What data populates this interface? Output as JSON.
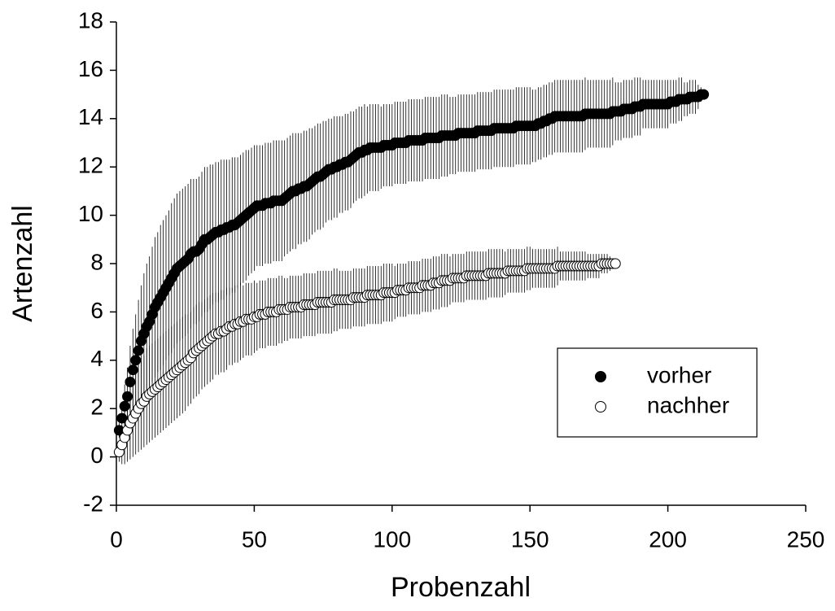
{
  "chart_data": {
    "type": "scatter",
    "xlabel": "Probenzahl",
    "ylabel": "Artenzahl",
    "xlim": [
      0,
      250
    ],
    "xticks": [
      0,
      50,
      100,
      150,
      200,
      250
    ],
    "ylim": [
      -2,
      18
    ],
    "yticks": [
      -2,
      0,
      2,
      4,
      6,
      8,
      10,
      12,
      14,
      16,
      18
    ],
    "legend": "lower right",
    "series": [
      {
        "name": "vorher",
        "color": "#000000",
        "x": [
          1,
          2,
          3,
          4,
          5,
          6,
          7,
          8,
          9,
          10,
          11,
          12,
          13,
          14,
          15,
          16,
          17,
          18,
          19,
          20,
          21,
          22,
          23,
          24,
          25,
          26,
          27,
          28,
          29,
          30,
          31,
          32,
          33,
          34,
          35,
          36,
          37,
          38,
          39,
          40,
          41,
          42,
          43,
          44,
          45,
          46,
          47,
          48,
          49,
          50,
          51,
          52,
          53,
          54,
          55,
          56,
          57,
          58,
          59,
          60,
          61,
          62,
          63,
          64,
          65,
          66,
          67,
          68,
          69,
          70,
          71,
          72,
          73,
          74,
          75,
          76,
          77,
          78,
          79,
          80,
          81,
          82,
          83,
          84,
          85,
          86,
          87,
          88,
          89,
          90,
          91,
          92,
          93,
          94,
          95,
          96,
          97,
          98,
          99,
          100,
          101,
          102,
          103,
          104,
          105,
          106,
          107,
          108,
          109,
          110,
          111,
          112,
          113,
          114,
          115,
          116,
          117,
          118,
          119,
          120,
          121,
          122,
          123,
          124,
          125,
          126,
          127,
          128,
          129,
          130,
          131,
          132,
          133,
          134,
          135,
          136,
          137,
          138,
          139,
          140,
          141,
          142,
          143,
          144,
          145,
          146,
          147,
          148,
          149,
          150,
          151,
          152,
          153,
          154,
          155,
          156,
          157,
          158,
          159,
          160,
          161,
          162,
          163,
          164,
          165,
          166,
          167,
          168,
          169,
          170,
          171,
          172,
          173,
          174,
          175,
          176,
          177,
          178,
          179,
          180,
          181,
          182,
          183,
          184,
          185,
          186,
          187,
          188,
          189,
          190,
          191,
          192,
          193,
          194,
          195,
          196,
          197,
          198,
          199,
          200,
          201,
          202,
          203,
          204,
          205,
          206,
          207,
          208,
          209,
          210,
          211,
          212,
          213
        ],
        "values": [
          1.1,
          1.6,
          2.1,
          2.5,
          3.1,
          3.6,
          4.0,
          4.4,
          4.8,
          5.1,
          5.4,
          5.6,
          5.9,
          6.2,
          6.4,
          6.6,
          6.8,
          7.0,
          7.2,
          7.4,
          7.6,
          7.8,
          7.9,
          8.0,
          8.1,
          8.2,
          8.4,
          8.5,
          8.5,
          8.6,
          8.8,
          9.0,
          9.0,
          9.1,
          9.2,
          9.3,
          9.3,
          9.4,
          9.4,
          9.5,
          9.5,
          9.6,
          9.6,
          9.7,
          9.8,
          9.9,
          10.0,
          10.1,
          10.2,
          10.3,
          10.4,
          10.4,
          10.4,
          10.5,
          10.5,
          10.5,
          10.6,
          10.6,
          10.6,
          10.6,
          10.7,
          10.8,
          10.9,
          11.0,
          11.0,
          11.1,
          11.1,
          11.2,
          11.2,
          11.3,
          11.4,
          11.5,
          11.6,
          11.6,
          11.7,
          11.8,
          11.9,
          11.9,
          12.0,
          12.0,
          12.1,
          12.1,
          12.2,
          12.2,
          12.3,
          12.4,
          12.5,
          12.6,
          12.6,
          12.7,
          12.7,
          12.8,
          12.8,
          12.8,
          12.8,
          12.8,
          12.9,
          12.9,
          12.9,
          12.9,
          13.0,
          13.0,
          13.0,
          13.0,
          13.0,
          13.1,
          13.1,
          13.1,
          13.1,
          13.1,
          13.1,
          13.2,
          13.2,
          13.2,
          13.2,
          13.2,
          13.2,
          13.3,
          13.3,
          13.3,
          13.3,
          13.3,
          13.3,
          13.4,
          13.4,
          13.4,
          13.4,
          13.4,
          13.4,
          13.4,
          13.5,
          13.5,
          13.5,
          13.5,
          13.5,
          13.5,
          13.6,
          13.6,
          13.6,
          13.6,
          13.6,
          13.6,
          13.6,
          13.6,
          13.7,
          13.7,
          13.7,
          13.7,
          13.7,
          13.7,
          13.7,
          13.7,
          13.8,
          13.8,
          13.9,
          13.9,
          14.0,
          14.0,
          14.1,
          14.1,
          14.1,
          14.1,
          14.1,
          14.1,
          14.1,
          14.1,
          14.1,
          14.1,
          14.1,
          14.2,
          14.2,
          14.2,
          14.2,
          14.2,
          14.2,
          14.2,
          14.2,
          14.2,
          14.2,
          14.3,
          14.3,
          14.3,
          14.3,
          14.4,
          14.4,
          14.4,
          14.4,
          14.5,
          14.5,
          14.5,
          14.6,
          14.6,
          14.6,
          14.6,
          14.6,
          14.6,
          14.6,
          14.6,
          14.6,
          14.6,
          14.7,
          14.7,
          14.7,
          14.8,
          14.8,
          14.8,
          14.8,
          14.9,
          14.9,
          14.9,
          14.9,
          15.0,
          15.0
        ],
        "errors": [
          0.3,
          0.6,
          0.9,
          1.2,
          1.5,
          1.7,
          1.9,
          2.1,
          2.3,
          2.5,
          2.6,
          2.7,
          2.8,
          2.9,
          2.9,
          3.0,
          3.0,
          3.0,
          3.0,
          3.1,
          3.1,
          3.1,
          3.1,
          3.1,
          3.1,
          3.1,
          3.1,
          3.0,
          3.0,
          3.0,
          3.0,
          3.0,
          3.0,
          3.0,
          2.9,
          2.9,
          2.9,
          2.9,
          2.9,
          2.8,
          2.8,
          2.8,
          2.8,
          2.7,
          2.7,
          2.7,
          2.7,
          2.6,
          2.6,
          2.6,
          2.5,
          2.5,
          2.5,
          2.5,
          2.5,
          2.5,
          2.5,
          2.5,
          2.5,
          2.5,
          2.4,
          2.4,
          2.4,
          2.4,
          2.4,
          2.3,
          2.3,
          2.3,
          2.3,
          2.3,
          2.2,
          2.2,
          2.2,
          2.2,
          2.2,
          2.1,
          2.1,
          2.1,
          2.1,
          2.1,
          2.0,
          2.0,
          2.0,
          2.0,
          2.0,
          1.9,
          1.9,
          1.9,
          1.9,
          1.9,
          1.8,
          1.8,
          1.8,
          1.8,
          1.8,
          1.7,
          1.7,
          1.7,
          1.7,
          1.7,
          1.7,
          1.7,
          1.7,
          1.7,
          1.7,
          1.7,
          1.7,
          1.7,
          1.7,
          1.7,
          1.7,
          1.7,
          1.7,
          1.7,
          1.7,
          1.7,
          1.7,
          1.7,
          1.7,
          1.7,
          1.6,
          1.6,
          1.6,
          1.6,
          1.6,
          1.6,
          1.6,
          1.6,
          1.6,
          1.6,
          1.6,
          1.6,
          1.6,
          1.6,
          1.6,
          1.6,
          1.6,
          1.6,
          1.6,
          1.6,
          1.6,
          1.6,
          1.6,
          1.6,
          1.6,
          1.6,
          1.6,
          1.6,
          1.6,
          1.6,
          1.5,
          1.5,
          1.5,
          1.5,
          1.5,
          1.5,
          1.5,
          1.5,
          1.5,
          1.5,
          1.5,
          1.5,
          1.5,
          1.5,
          1.5,
          1.5,
          1.5,
          1.5,
          1.5,
          1.5,
          1.4,
          1.4,
          1.4,
          1.4,
          1.4,
          1.4,
          1.4,
          1.4,
          1.4,
          1.4,
          1.2,
          1.2,
          1.2,
          1.2,
          1.2,
          1.2,
          1.2,
          1.2,
          1.2,
          1.2,
          1.0,
          1.0,
          1.0,
          1.0,
          1.0,
          1.0,
          1.0,
          1.0,
          1.0,
          1.0,
          0.9,
          0.9,
          0.9,
          0.9,
          0.9,
          0.7,
          0.7,
          0.7,
          0.7,
          0.7,
          0.5,
          0.3,
          0
        ]
      },
      {
        "name": "nachher",
        "color": "#ffffff",
        "x": [
          1,
          2,
          3,
          4,
          5,
          6,
          7,
          8,
          9,
          10,
          11,
          12,
          13,
          14,
          15,
          16,
          17,
          18,
          19,
          20,
          21,
          22,
          23,
          24,
          25,
          26,
          27,
          28,
          29,
          30,
          31,
          32,
          33,
          34,
          35,
          36,
          37,
          38,
          39,
          40,
          41,
          42,
          43,
          44,
          45,
          46,
          47,
          48,
          49,
          50,
          51,
          52,
          53,
          54,
          55,
          56,
          57,
          58,
          59,
          60,
          61,
          62,
          63,
          64,
          65,
          66,
          67,
          68,
          69,
          70,
          71,
          72,
          73,
          74,
          75,
          76,
          77,
          78,
          79,
          80,
          81,
          82,
          83,
          84,
          85,
          86,
          87,
          88,
          89,
          90,
          91,
          92,
          93,
          94,
          95,
          96,
          97,
          98,
          99,
          100,
          101,
          102,
          103,
          104,
          105,
          106,
          107,
          108,
          109,
          110,
          111,
          112,
          113,
          114,
          115,
          116,
          117,
          118,
          119,
          120,
          121,
          122,
          123,
          124,
          125,
          126,
          127,
          128,
          129,
          130,
          131,
          132,
          133,
          134,
          135,
          136,
          137,
          138,
          139,
          140,
          141,
          142,
          143,
          144,
          145,
          146,
          147,
          148,
          149,
          150,
          151,
          152,
          153,
          154,
          155,
          156,
          157,
          158,
          159,
          160,
          161,
          162,
          163,
          164,
          165,
          166,
          167,
          168,
          169,
          170,
          171,
          172,
          173,
          174,
          175,
          176,
          177,
          178,
          179,
          180,
          181
        ],
        "values": [
          0.2,
          0.5,
          0.8,
          1.1,
          1.4,
          1.6,
          1.8,
          2.0,
          2.2,
          2.3,
          2.5,
          2.6,
          2.7,
          2.8,
          2.9,
          3.0,
          3.1,
          3.2,
          3.3,
          3.4,
          3.5,
          3.6,
          3.7,
          3.8,
          3.9,
          4.0,
          4.1,
          4.3,
          4.4,
          4.5,
          4.6,
          4.7,
          4.8,
          4.9,
          5.0,
          5.1,
          5.1,
          5.2,
          5.2,
          5.3,
          5.4,
          5.4,
          5.5,
          5.5,
          5.6,
          5.6,
          5.7,
          5.7,
          5.7,
          5.8,
          5.8,
          5.9,
          5.9,
          5.9,
          6.0,
          6.0,
          6.0,
          6.0,
          6.1,
          6.1,
          6.1,
          6.1,
          6.2,
          6.2,
          6.2,
          6.2,
          6.2,
          6.3,
          6.3,
          6.3,
          6.3,
          6.3,
          6.4,
          6.4,
          6.4,
          6.4,
          6.4,
          6.4,
          6.5,
          6.5,
          6.5,
          6.5,
          6.5,
          6.5,
          6.5,
          6.6,
          6.6,
          6.6,
          6.6,
          6.6,
          6.7,
          6.7,
          6.7,
          6.7,
          6.7,
          6.7,
          6.8,
          6.8,
          6.8,
          6.8,
          6.8,
          6.9,
          6.9,
          6.9,
          6.9,
          7.0,
          7.0,
          7.0,
          7.0,
          7.0,
          7.1,
          7.1,
          7.1,
          7.1,
          7.2,
          7.2,
          7.2,
          7.3,
          7.3,
          7.3,
          7.3,
          7.4,
          7.4,
          7.4,
          7.4,
          7.4,
          7.5,
          7.5,
          7.5,
          7.5,
          7.5,
          7.5,
          7.5,
          7.5,
          7.6,
          7.6,
          7.6,
          7.6,
          7.6,
          7.6,
          7.6,
          7.7,
          7.7,
          7.7,
          7.7,
          7.7,
          7.7,
          7.7,
          7.8,
          7.8,
          7.8,
          7.8,
          7.8,
          7.8,
          7.8,
          7.8,
          7.8,
          7.8,
          7.8,
          7.9,
          7.9,
          7.9,
          7.9,
          7.9,
          7.9,
          7.9,
          7.9,
          7.9,
          7.9,
          7.9,
          7.9,
          7.9,
          7.9,
          7.9,
          7.9,
          8.0,
          8.0,
          8.0,
          8.0,
          8.0,
          8.0
        ],
        "errors": [
          0.4,
          0.8,
          1.1,
          1.3,
          1.5,
          1.6,
          1.7,
          1.8,
          1.9,
          1.9,
          2.0,
          2.0,
          2.0,
          2.0,
          2.0,
          2.0,
          2.0,
          2.0,
          2.0,
          2.0,
          2.0,
          2.0,
          2.0,
          2.0,
          2.0,
          1.9,
          1.9,
          1.9,
          1.9,
          1.9,
          1.8,
          1.8,
          1.8,
          1.8,
          1.8,
          1.7,
          1.7,
          1.7,
          1.7,
          1.7,
          1.6,
          1.6,
          1.6,
          1.6,
          1.6,
          1.5,
          1.5,
          1.5,
          1.5,
          1.5,
          1.4,
          1.4,
          1.4,
          1.4,
          1.4,
          1.4,
          1.4,
          1.4,
          1.4,
          1.4,
          1.3,
          1.3,
          1.3,
          1.3,
          1.3,
          1.3,
          1.3,
          1.3,
          1.3,
          1.3,
          1.3,
          1.3,
          1.3,
          1.3,
          1.3,
          1.3,
          1.3,
          1.3,
          1.3,
          1.3,
          1.2,
          1.2,
          1.2,
          1.2,
          1.2,
          1.2,
          1.2,
          1.2,
          1.2,
          1.2,
          1.2,
          1.2,
          1.2,
          1.2,
          1.2,
          1.2,
          1.2,
          1.2,
          1.2,
          1.2,
          1.1,
          1.1,
          1.1,
          1.1,
          1.1,
          1.1,
          1.1,
          1.1,
          1.1,
          1.1,
          1.1,
          1.1,
          1.1,
          1.1,
          1.1,
          1.1,
          1.1,
          1.1,
          1.1,
          1.1,
          1.0,
          1.0,
          1.0,
          1.0,
          1.0,
          1.0,
          1.0,
          1.0,
          1.0,
          1.0,
          1.0,
          1.0,
          1.0,
          1.0,
          1.0,
          1.0,
          1.0,
          1.0,
          1.0,
          1.0,
          0.9,
          0.9,
          0.9,
          0.9,
          0.9,
          0.9,
          0.9,
          0.9,
          0.9,
          0.9,
          0.8,
          0.8,
          0.8,
          0.8,
          0.8,
          0.8,
          0.8,
          0.8,
          0.8,
          0.8,
          0.6,
          0.6,
          0.6,
          0.6,
          0.6,
          0.6,
          0.6,
          0.6,
          0.6,
          0.6,
          0.5,
          0.5,
          0.5,
          0.5,
          0.5,
          0.4,
          0.4,
          0.4,
          0.3,
          0.2,
          0
        ]
      }
    ]
  }
}
